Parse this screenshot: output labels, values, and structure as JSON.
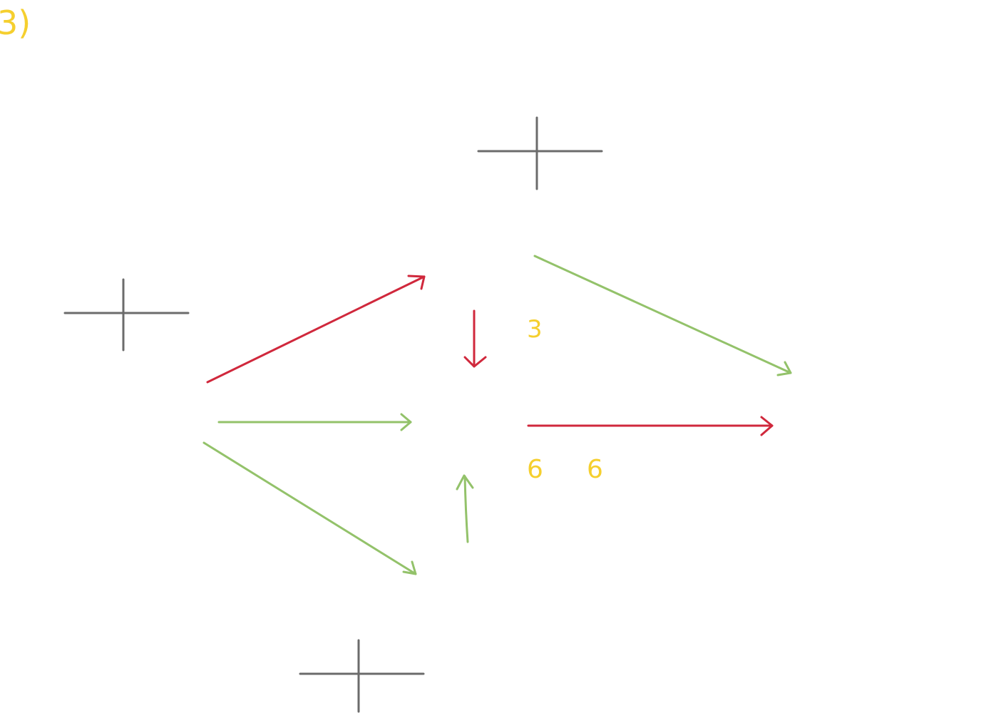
{
  "colors": {
    "background": "#ffffff",
    "axis": "#6b6b6b",
    "red_arrow": "#d0283c",
    "green_arrow": "#93c26a",
    "label_yellow": "#f5cf2e"
  },
  "problem_label": "3)",
  "labels": {
    "middle_top": "3",
    "bottom_left": "6",
    "bottom_right": "6"
  },
  "axes": [
    {
      "name": "axis-cross-top"
    },
    {
      "name": "axis-cross-left"
    },
    {
      "name": "axis-cross-bottom"
    }
  ],
  "arrows": [
    {
      "name": "red-arrow-diagonal-up",
      "color": "red"
    },
    {
      "name": "red-arrow-down",
      "color": "red"
    },
    {
      "name": "red-arrow-right",
      "color": "red"
    },
    {
      "name": "green-arrow-diagonal-down-right",
      "color": "green"
    },
    {
      "name": "green-arrow-horizontal",
      "color": "green"
    },
    {
      "name": "green-arrow-diagonal-down",
      "color": "green"
    },
    {
      "name": "green-arrow-up",
      "color": "green"
    }
  ]
}
